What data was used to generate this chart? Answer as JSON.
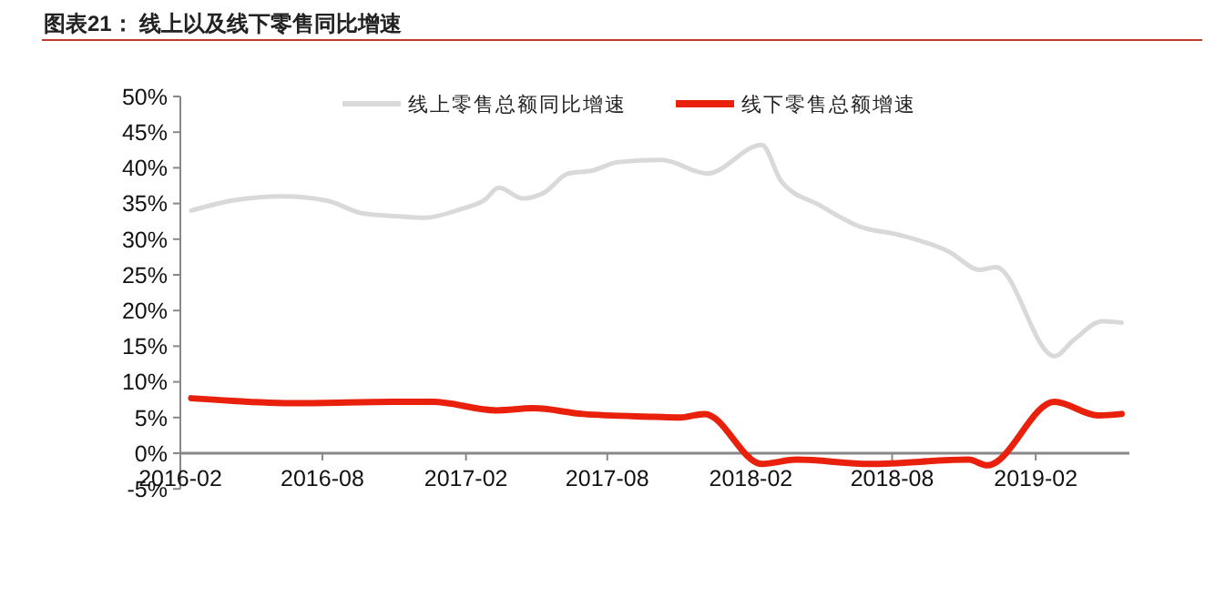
{
  "chart_data": {
    "type": "line",
    "title": "图表21：  线上以及线下零售同比增速",
    "xlim": [
      "2016-02",
      "2019-06"
    ],
    "xticks": [
      "2016-02",
      "2016-08",
      "2017-02",
      "2017-08",
      "2018-02",
      "2018-08",
      "2019-02"
    ],
    "ylim": [
      -5,
      50
    ],
    "yticks": [
      {
        "value": -5,
        "label": "-5%"
      },
      {
        "value": 0,
        "label": "0%"
      },
      {
        "value": 5,
        "label": "5%"
      },
      {
        "value": 10,
        "label": "10%"
      },
      {
        "value": 15,
        "label": "15%"
      },
      {
        "value": 20,
        "label": "20%"
      },
      {
        "value": 25,
        "label": "25%"
      },
      {
        "value": 30,
        "label": "30%"
      },
      {
        "value": 35,
        "label": "35%"
      },
      {
        "value": 40,
        "label": "40%"
      },
      {
        "value": 45,
        "label": "45%"
      },
      {
        "value": 50,
        "label": "50%"
      }
    ],
    "legend": "top",
    "grid": false,
    "series": [
      {
        "name": "线上零售总额同比增速",
        "color": "#d9d9d9",
        "x": [
          "2016-02-15",
          "2016-04-12",
          "2016-06-12",
          "2016-08-07",
          "2016-09-22",
          "2016-11-07",
          "2016-12-10",
          "2017-01-25",
          "2017-02-25",
          "2017-03-15",
          "2017-04-15",
          "2017-05-12",
          "2017-06-12",
          "2017-07-12",
          "2017-08-15",
          "2017-10-10",
          "2017-12-07",
          "2018-02-15",
          "2018-03-12",
          "2018-05-01",
          "2018-06-22",
          "2018-08-10",
          "2018-10-12",
          "2018-11-22",
          "2018-12-12",
          "2019-02-25",
          "2019-03-22",
          "2019-04-28",
          "2019-05-22"
        ],
        "values": [
          34.0,
          35.5,
          36.0,
          35.4,
          33.6,
          33.2,
          33.0,
          34.2,
          35.5,
          37.2,
          35.7,
          36.5,
          39.2,
          39.6,
          40.8,
          41.1,
          39.2,
          43.2,
          38.1,
          34.7,
          31.7,
          30.6,
          28.3,
          25.7,
          26.1,
          13.6,
          15.9,
          18.5,
          18.3
        ]
      },
      {
        "name": "线下零售总额增速",
        "color": "#e8200c",
        "x": [
          "2016-02-15",
          "2016-07-01",
          "2016-11-01",
          "2016-12-20",
          "2017-03-12",
          "2017-04-28",
          "2017-07-01",
          "2017-10-01",
          "2017-11-01",
          "2017-12-04",
          "2018-02-15",
          "2018-04-01",
          "2018-07-04",
          "2018-11-07",
          "2018-12-01",
          "2019-02-25",
          "2019-04-22",
          "2019-05-22"
        ],
        "values": [
          7.7,
          7.0,
          7.2,
          7.2,
          6.0,
          6.3,
          5.5,
          5.1,
          5.0,
          5.5,
          -1.5,
          -0.9,
          -1.5,
          -0.9,
          -1.7,
          7.2,
          5.3,
          5.5
        ]
      }
    ]
  }
}
